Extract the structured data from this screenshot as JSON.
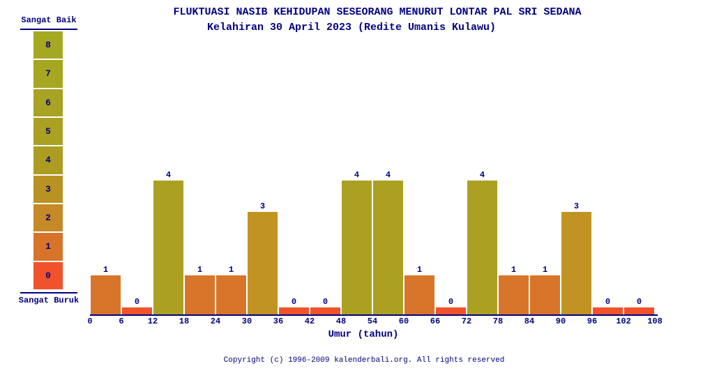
{
  "title": {
    "line1": "FLUKTUASI NASIB KEHIDUPAN SESEORANG MENURUT LONTAR PAL SRI SEDANA",
    "line2": "Kelahiran 30 April 2023 (Redite Umanis Kulawu)"
  },
  "legend": {
    "top_label": "Sangat Baik",
    "bottom_label": "Sangat Buruk",
    "levels": [
      {
        "value": 8,
        "color": "#A5A921"
      },
      {
        "value": 7,
        "color": "#A6A621"
      },
      {
        "value": 6,
        "color": "#A8A322"
      },
      {
        "value": 5,
        "color": "#AAA022"
      },
      {
        "value": 4,
        "color": "#AC9C22"
      },
      {
        "value": 3,
        "color": "#B89222"
      },
      {
        "value": 2,
        "color": "#C58927"
      },
      {
        "value": 1,
        "color": "#D8732A"
      },
      {
        "value": 0,
        "color": "#F0522B"
      }
    ]
  },
  "chart_data": {
    "type": "bar",
    "title": "FLUKTUASI NASIB KEHIDUPAN SESEORANG MENURUT LONTAR PAL SRI SEDANA",
    "subtitle": "Kelahiran 30 April 2023 (Redite Umanis Kulawu)",
    "xlabel": "Umur (tahun)",
    "ylabel": "",
    "ylim": [
      0,
      8
    ],
    "x_ticks": [
      0,
      6,
      12,
      18,
      24,
      30,
      36,
      42,
      48,
      54,
      60,
      66,
      72,
      78,
      84,
      90,
      96,
      102,
      108
    ],
    "bin_width_years": 6,
    "categories": [
      "0-6",
      "6-12",
      "12-18",
      "18-24",
      "24-30",
      "30-36",
      "36-42",
      "42-48",
      "48-54",
      "54-60",
      "60-66",
      "66-72",
      "72-78",
      "78-84",
      "84-90",
      "90-96",
      "96-102",
      "102-108"
    ],
    "values": [
      1,
      0,
      4,
      1,
      1,
      3,
      0,
      0,
      4,
      4,
      1,
      0,
      4,
      1,
      1,
      3,
      0,
      0
    ],
    "value_colors": {
      "0": "#F0522B",
      "1": "#D9752A",
      "3": "#C19322",
      "4": "#ACA022"
    },
    "grid": false,
    "legend_position": "left",
    "scale_labels": {
      "high": "Sangat Baik",
      "low": "Sangat Buruk"
    }
  },
  "footer": {
    "copyright": "Copyright (c) 1996-2009 kalenderbali.org. All rights reserved"
  },
  "colors": {
    "text": "#000080",
    "axis": "#000080",
    "background": "#FFFFFF"
  }
}
